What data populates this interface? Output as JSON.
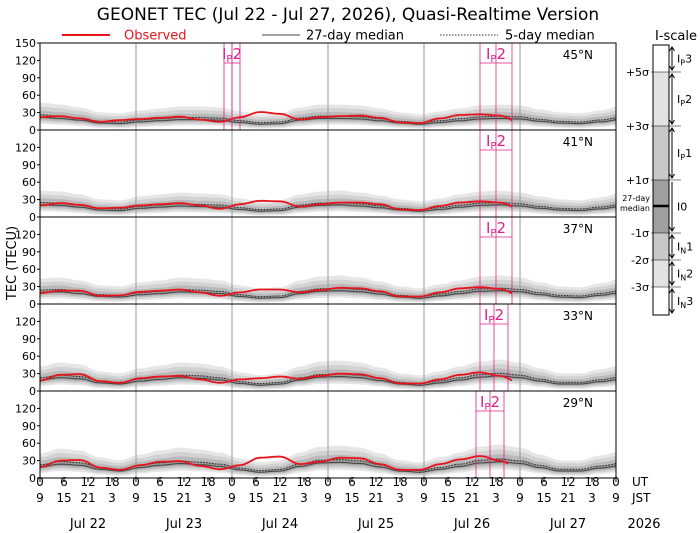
{
  "chart_data": {
    "type": "line",
    "title": "GEONET TEC (Jul 22 - Jul 27, 2026), Quasi-Realtime Version",
    "legend": {
      "observed": "Observed",
      "median27": "27-day median",
      "median5": "5-day median",
      "placement": "top"
    },
    "ylabel": "TEC (TECU)",
    "ylim": [
      0,
      150
    ],
    "yticks": [
      0,
      30,
      60,
      90,
      120,
      150
    ],
    "xlim_hours": [
      0,
      144
    ],
    "ut_label": "UT",
    "jst_label": "JST",
    "ut_ticks": [
      "0",
      "6",
      "12",
      "18",
      "0",
      "6",
      "12",
      "18",
      "0",
      "6",
      "12",
      "18",
      "0",
      "6",
      "12",
      "18",
      "0",
      "6",
      "12",
      "18",
      "0",
      "6",
      "12",
      "18",
      "0"
    ],
    "jst_ticks": [
      "9",
      "15",
      "21",
      "3",
      "9",
      "15",
      "21",
      "3",
      "9",
      "15",
      "21",
      "3",
      "9",
      "15",
      "21",
      "3",
      "9",
      "15",
      "21",
      "3",
      "9",
      "15",
      "21",
      "3",
      "9"
    ],
    "days": [
      "Jul 22",
      "Jul 23",
      "Jul 24",
      "Jul 25",
      "Jul 26",
      "Jul 27"
    ],
    "year": "2026",
    "panels": [
      {
        "lat": "45°N",
        "median": [
          22,
          20,
          17,
          12,
          11,
          14,
          16,
          18,
          18,
          17,
          13,
          10,
          11,
          17,
          20,
          20,
          19,
          16,
          12,
          10,
          13,
          16,
          19,
          20,
          19,
          15,
          12,
          11,
          14,
          18
        ],
        "observed": [
          22,
          24,
          20,
          14,
          17,
          19,
          21,
          23,
          18,
          14,
          22,
          31,
          28,
          18,
          22,
          24,
          25,
          21,
          13,
          12,
          20,
          26,
          27,
          25,
          12,
          31,
          30,
          0,
          0,
          0
        ],
        "obs_end_hour": 118,
        "ip_events": [
          {
            "label": "IP2",
            "start": 46,
            "end": 50
          },
          {
            "label": "IP2",
            "start": 110,
            "end": 118
          }
        ]
      },
      {
        "lat": "41°N",
        "median": [
          21,
          20,
          17,
          12,
          11,
          15,
          17,
          19,
          18,
          17,
          13,
          10,
          11,
          17,
          20,
          21,
          19,
          16,
          12,
          10,
          13,
          17,
          20,
          21,
          19,
          15,
          12,
          11,
          14,
          18
        ],
        "observed": [
          20,
          24,
          21,
          15,
          16,
          20,
          22,
          24,
          20,
          14,
          22,
          28,
          27,
          18,
          22,
          25,
          25,
          22,
          13,
          12,
          19,
          25,
          27,
          25,
          14,
          32,
          33,
          0,
          0,
          0
        ],
        "obs_end_hour": 118,
        "ip_events": [
          {
            "label": "IP2",
            "start": 110,
            "end": 118
          }
        ]
      },
      {
        "lat": "37°N",
        "median": [
          20,
          21,
          18,
          13,
          12,
          16,
          18,
          21,
          20,
          18,
          13,
          10,
          11,
          18,
          22,
          23,
          21,
          17,
          12,
          10,
          14,
          18,
          22,
          23,
          21,
          16,
          12,
          11,
          15,
          19
        ],
        "observed": [
          19,
          23,
          23,
          14,
          15,
          21,
          23,
          25,
          20,
          14,
          20,
          25,
          25,
          20,
          24,
          28,
          27,
          22,
          13,
          13,
          20,
          27,
          29,
          26,
          14,
          33,
          34,
          0,
          0,
          0
        ],
        "obs_end_hour": 118,
        "ip_events": [
          {
            "label": "IP2",
            "start": 110,
            "end": 118
          }
        ]
      },
      {
        "lat": "33°N",
        "median": [
          19,
          23,
          21,
          14,
          12,
          17,
          20,
          23,
          22,
          19,
          13,
          10,
          12,
          19,
          24,
          25,
          23,
          18,
          12,
          10,
          14,
          19,
          24,
          26,
          23,
          17,
          12,
          12,
          16,
          20
        ],
        "observed": [
          18,
          28,
          29,
          17,
          14,
          22,
          25,
          26,
          20,
          14,
          20,
          22,
          25,
          21,
          26,
          30,
          29,
          22,
          13,
          13,
          20,
          28,
          32,
          26,
          14,
          34,
          35,
          0,
          0,
          0
        ],
        "obs_end_hour": 118,
        "ip_events": [
          {
            "label": "IP2",
            "start": 110,
            "end": 117
          }
        ]
      },
      {
        "lat": "29°N",
        "median": [
          19,
          24,
          22,
          15,
          12,
          18,
          22,
          25,
          23,
          20,
          14,
          10,
          12,
          20,
          26,
          27,
          25,
          19,
          12,
          10,
          15,
          20,
          26,
          28,
          25,
          18,
          12,
          12,
          17,
          21
        ],
        "observed": [
          19,
          30,
          31,
          18,
          14,
          22,
          28,
          29,
          21,
          15,
          22,
          35,
          37,
          24,
          28,
          35,
          34,
          24,
          14,
          14,
          24,
          32,
          38,
          30,
          15,
          32,
          34,
          0,
          0,
          0
        ],
        "obs_end_hour": 117,
        "ip_events": [
          {
            "label": "IP2",
            "start": 109,
            "end": 116
          }
        ]
      }
    ],
    "iscale": {
      "title": "I-scale",
      "sigma_labels": [
        "+5σ",
        "+3σ",
        "+1σ",
        "-1σ",
        "-2σ",
        "-3σ"
      ],
      "median_label": "27-day median",
      "levels": [
        "IP3",
        "IP2",
        "IP1",
        "I0",
        "IN1",
        "IN2",
        "IN3"
      ]
    },
    "colors": {
      "observed": "#e8141b",
      "ip": "#e0208a",
      "median": "#555555"
    }
  }
}
